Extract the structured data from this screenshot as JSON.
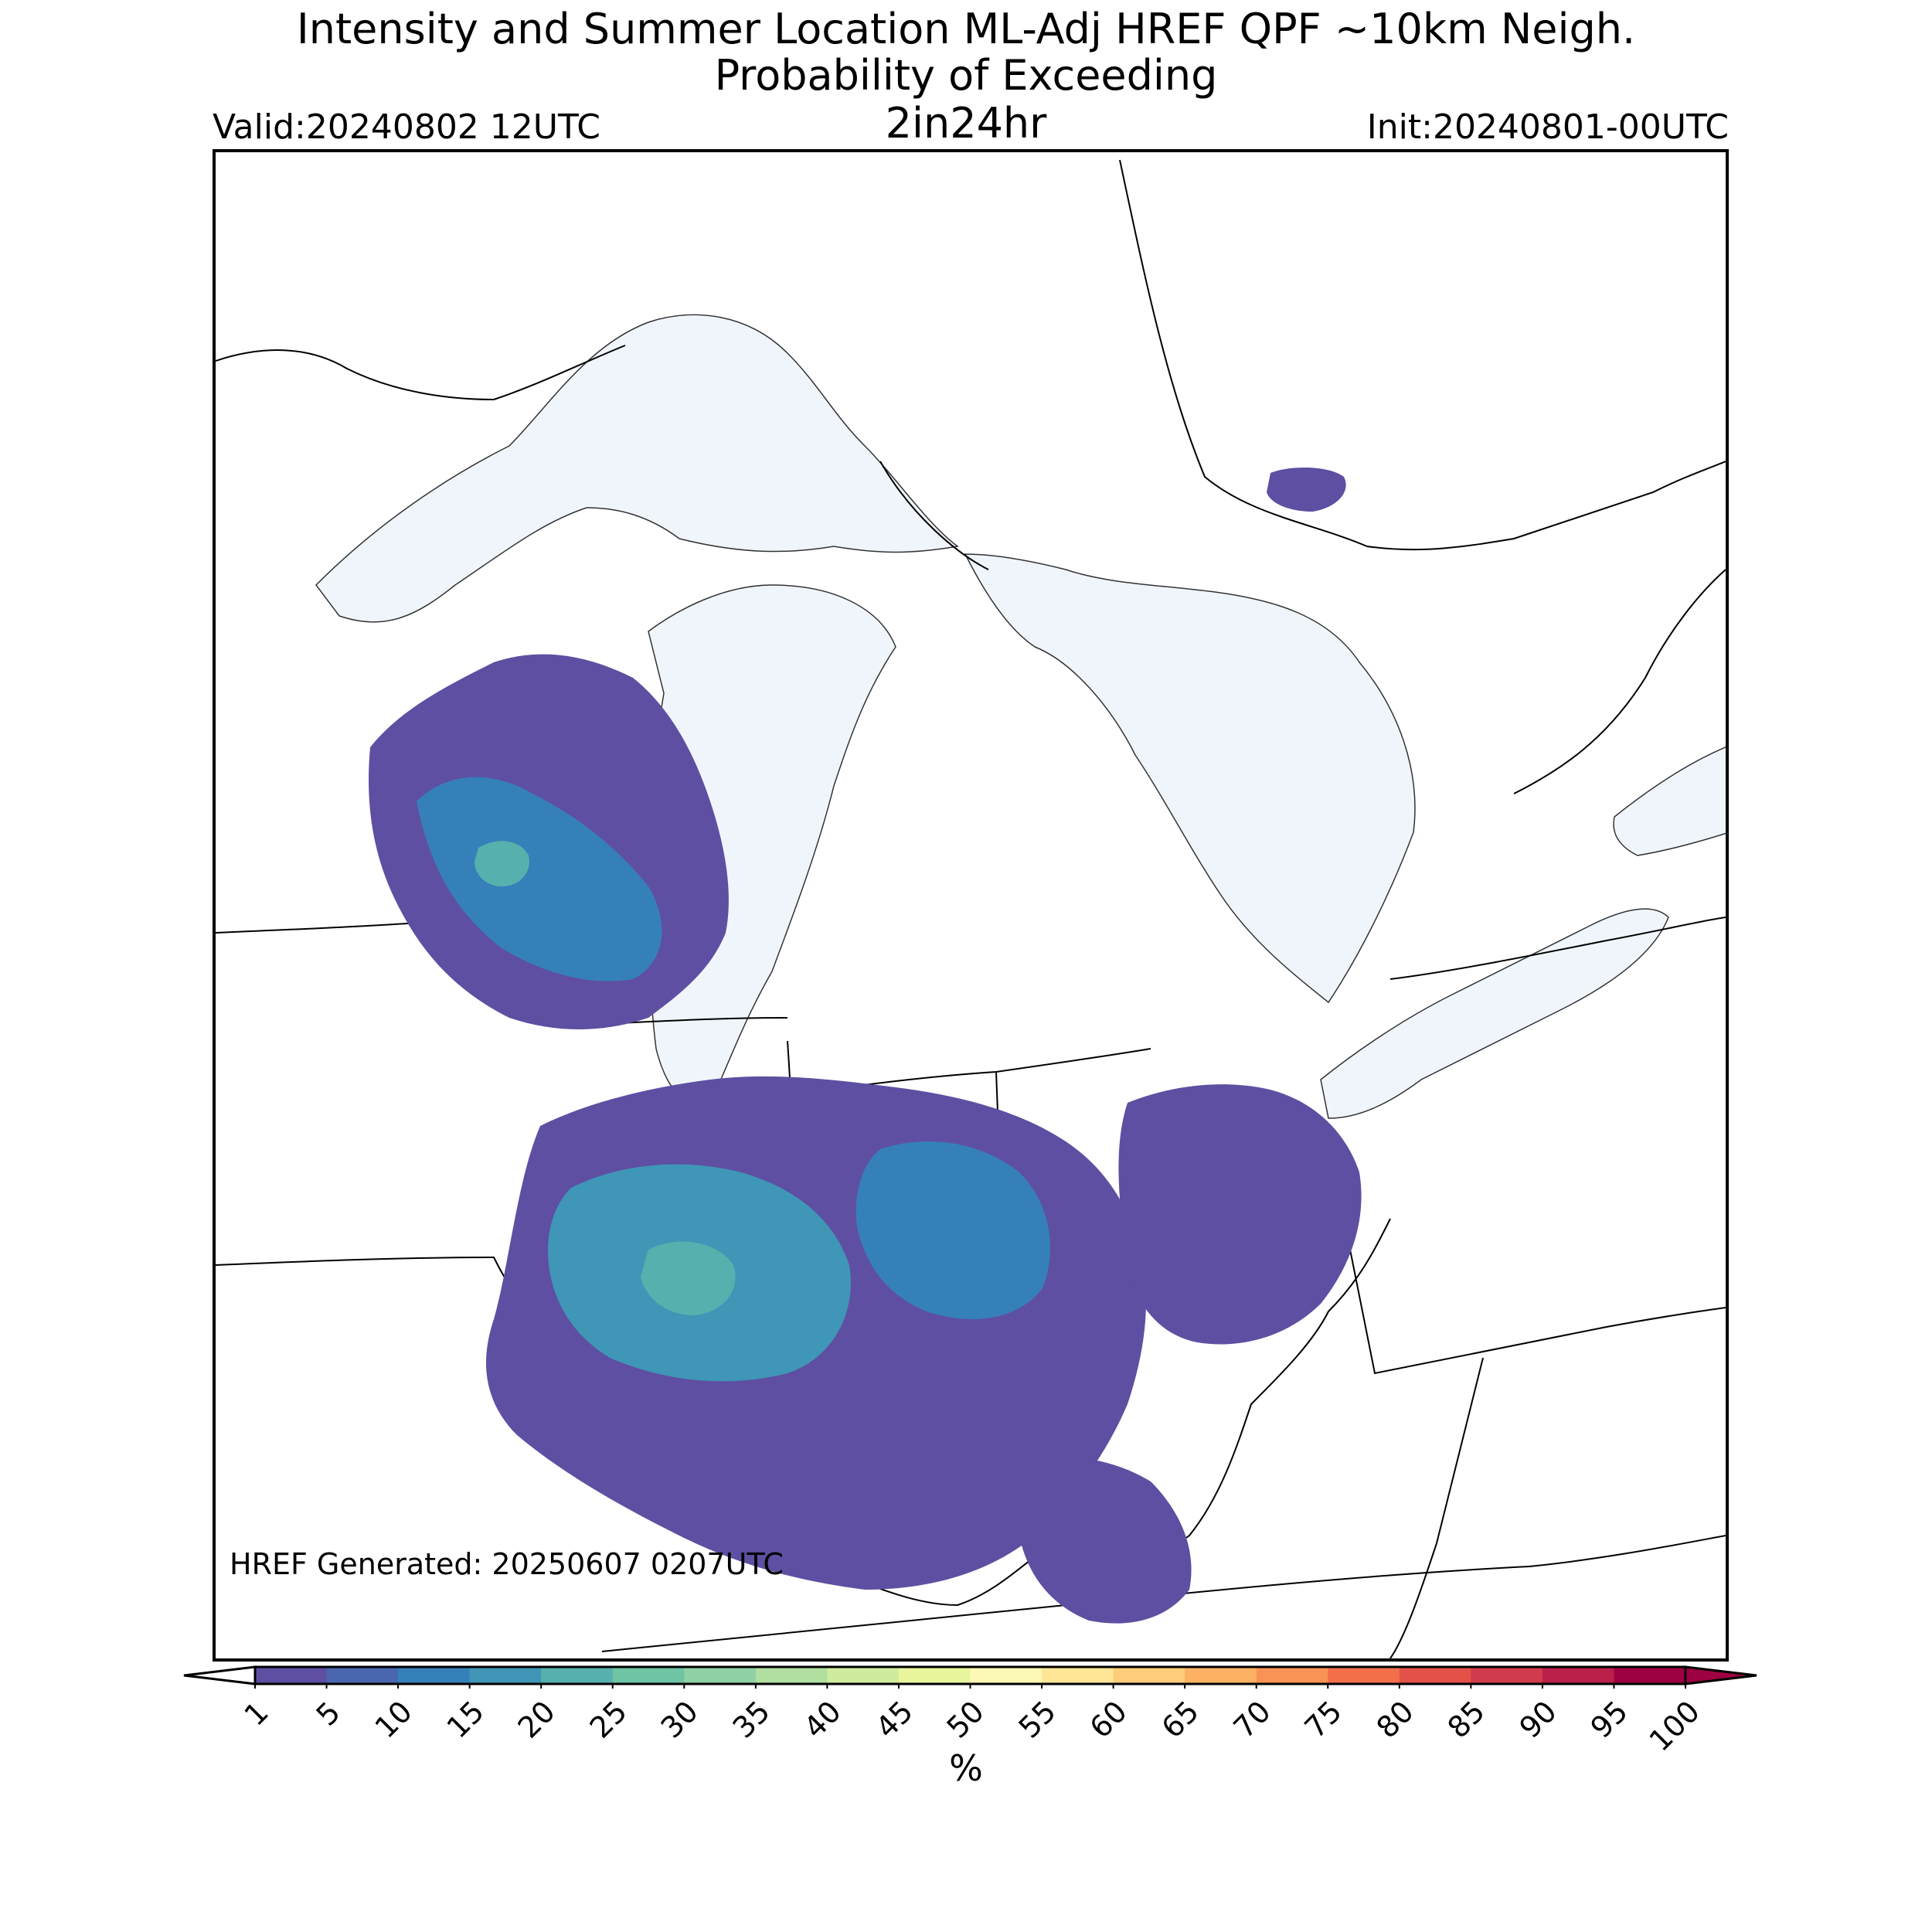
{
  "title": {
    "line1": "Intensity and Summer Location ML-Adj HREF QPF ~10km Neigh.",
    "line2": "Probability of Exceeding",
    "threshold": "2in24hr"
  },
  "valid_label": "Valid:20240802 12UTC",
  "init_label": "Init:20240801-00UTC",
  "generated_label": "HREF Generated: 20250607 0207UTC",
  "map": {
    "region": "Great Lakes / Upper Midwest / Ohio Valley",
    "water_color": "#f0f5fb",
    "border_color": "#000000"
  },
  "colorbar": {
    "unit": "%",
    "ticks": [
      "1",
      "5",
      "10",
      "15",
      "20",
      "25",
      "30",
      "35",
      "40",
      "45",
      "50",
      "55",
      "60",
      "65",
      "70",
      "75",
      "80",
      "85",
      "90",
      "95",
      "100"
    ],
    "colors": [
      "#5e4fa2",
      "#4a66ae",
      "#3680b9",
      "#3f96b7",
      "#56b0ad",
      "#6fc4a4",
      "#8fd1a4",
      "#b0df9f",
      "#cfec9e",
      "#e9f59c",
      "#fcf9b6",
      "#fee696",
      "#fecd7a",
      "#fdb163",
      "#f99355",
      "#f36f4a",
      "#e45148",
      "#d13c4c",
      "#ba204a",
      "#9e0142"
    ],
    "under_color": "#ffffff",
    "over_color": "#9e0142"
  }
}
